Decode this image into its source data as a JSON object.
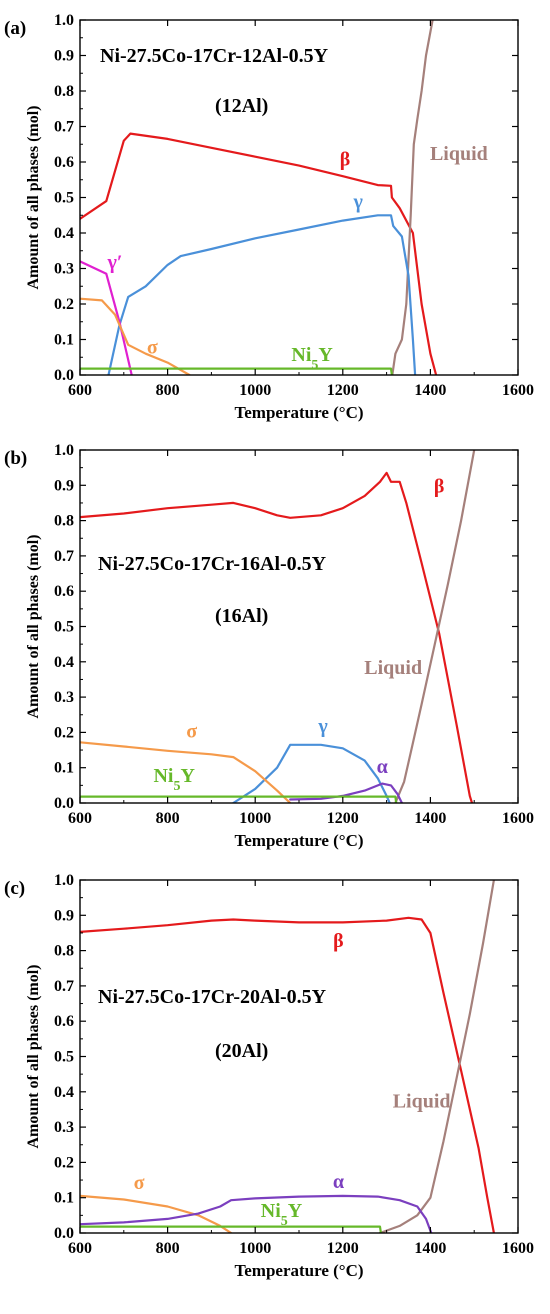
{
  "figure": {
    "shared_axes": {
      "xlabel": "Temperature (°C)",
      "ylabel": "Amount of all phases (mol)",
      "xlim": [
        600,
        1600
      ],
      "ylim": [
        0,
        1.0
      ],
      "xticks": [
        "600",
        "800",
        "1000",
        "1200",
        "1400",
        "1600"
      ],
      "yticks": [
        "0.0",
        "0.1",
        "0.2",
        "0.3",
        "0.4",
        "0.5",
        "0.6",
        "0.7",
        "0.8",
        "0.9",
        "1.0"
      ]
    },
    "colors": {
      "beta": "#e41a1c",
      "liquid": "#a5807b",
      "gamma": "#4a90d9",
      "gamma_prime": "#e020d0",
      "sigma": "#f59a4a",
      "ni5y": "#66b82a",
      "alpha": "#7b3fbf"
    }
  },
  "chart_data": [
    {
      "type": "line",
      "panel_label": "(a)",
      "title": "Ni-27.5Co-17Cr-12Al-0.5Y",
      "subtitle": "(12Al)",
      "xlim": [
        600,
        1600
      ],
      "ylim": [
        0,
        1.0
      ],
      "series": [
        {
          "name": "β",
          "color_key": "beta",
          "points": [
            [
              600,
              0.44
            ],
            [
              660,
              0.49
            ],
            [
              700,
              0.66
            ],
            [
              715,
              0.68
            ],
            [
              800,
              0.665
            ],
            [
              900,
              0.64
            ],
            [
              1000,
              0.615
            ],
            [
              1100,
              0.59
            ],
            [
              1200,
              0.56
            ],
            [
              1280,
              0.535
            ],
            [
              1310,
              0.533
            ],
            [
              1312,
              0.5
            ],
            [
              1330,
              0.47
            ],
            [
              1360,
              0.4
            ],
            [
              1380,
              0.2
            ],
            [
              1400,
              0.06
            ],
            [
              1413,
              0.0
            ]
          ]
        },
        {
          "name": "Liquid",
          "color_key": "liquid",
          "points": [
            [
              1313,
              0.0
            ],
            [
              1320,
              0.06
            ],
            [
              1335,
              0.1
            ],
            [
              1345,
              0.2
            ],
            [
              1355,
              0.45
            ],
            [
              1362,
              0.65
            ],
            [
              1370,
              0.72
            ],
            [
              1380,
              0.8
            ],
            [
              1390,
              0.9
            ],
            [
              1405,
              1.0
            ]
          ]
        },
        {
          "name": "γ",
          "color_key": "gamma",
          "points": [
            [
              665,
              0.0
            ],
            [
              690,
              0.14
            ],
            [
              710,
              0.22
            ],
            [
              750,
              0.25
            ],
            [
              800,
              0.31
            ],
            [
              830,
              0.335
            ],
            [
              900,
              0.355
            ],
            [
              1000,
              0.385
            ],
            [
              1100,
              0.41
            ],
            [
              1200,
              0.435
            ],
            [
              1280,
              0.45
            ],
            [
              1310,
              0.45
            ],
            [
              1315,
              0.42
            ],
            [
              1335,
              0.39
            ],
            [
              1350,
              0.28
            ],
            [
              1360,
              0.1
            ],
            [
              1365,
              0.0
            ]
          ]
        },
        {
          "name": "γ′",
          "color_key": "gamma_prime",
          "points": [
            [
              600,
              0.32
            ],
            [
              660,
              0.285
            ],
            [
              690,
              0.15
            ],
            [
              718,
              0.0
            ]
          ]
        },
        {
          "name": "σ",
          "color_key": "sigma",
          "points": [
            [
              600,
              0.215
            ],
            [
              650,
              0.21
            ],
            [
              680,
              0.17
            ],
            [
              710,
              0.085
            ],
            [
              750,
              0.06
            ],
            [
              800,
              0.035
            ],
            [
              850,
              0.0
            ]
          ]
        },
        {
          "name": "Ni₅Y",
          "color_key": "ni5y",
          "points": [
            [
              600,
              0.018
            ],
            [
              1310,
              0.018
            ],
            [
              1312,
              0.0
            ]
          ]
        }
      ],
      "labels": [
        {
          "text": "β",
          "color_key": "beta",
          "x": 1205,
          "y": 0.59
        },
        {
          "text": "Liquid",
          "color_key": "liquid",
          "x": 1465,
          "y": 0.605
        },
        {
          "text": "γ",
          "color_key": "gamma",
          "x": 1235,
          "y": 0.47
        },
        {
          "text": "γ′",
          "color_key": "gamma_prime",
          "x": 680,
          "y": 0.3
        },
        {
          "text": "σ",
          "color_key": "sigma",
          "x": 765,
          "y": 0.06
        },
        {
          "text": "Ni₅Y",
          "color_key": "ni5y",
          "x": 1130,
          "y": 0.04
        }
      ]
    },
    {
      "type": "line",
      "panel_label": "(b)",
      "title": "Ni-27.5Co-17Cr-16Al-0.5Y",
      "subtitle": "(16Al)",
      "xlim": [
        600,
        1600
      ],
      "ylim": [
        0,
        1.0
      ],
      "series": [
        {
          "name": "β",
          "color_key": "beta",
          "points": [
            [
              600,
              0.81
            ],
            [
              700,
              0.82
            ],
            [
              800,
              0.835
            ],
            [
              900,
              0.845
            ],
            [
              950,
              0.85
            ],
            [
              1000,
              0.835
            ],
            [
              1050,
              0.815
            ],
            [
              1080,
              0.808
            ],
            [
              1150,
              0.815
            ],
            [
              1200,
              0.835
            ],
            [
              1250,
              0.87
            ],
            [
              1285,
              0.91
            ],
            [
              1300,
              0.935
            ],
            [
              1310,
              0.91
            ],
            [
              1330,
              0.91
            ],
            [
              1345,
              0.85
            ],
            [
              1380,
              0.68
            ],
            [
              1420,
              0.48
            ],
            [
              1460,
              0.22
            ],
            [
              1490,
              0.02
            ],
            [
              1495,
              0.0
            ]
          ]
        },
        {
          "name": "Liquid",
          "color_key": "liquid",
          "points": [
            [
              1320,
              0.0
            ],
            [
              1330,
              0.03
            ],
            [
              1340,
              0.06
            ],
            [
              1360,
              0.17
            ],
            [
              1380,
              0.28
            ],
            [
              1410,
              0.45
            ],
            [
              1440,
              0.62
            ],
            [
              1470,
              0.8
            ],
            [
              1500,
              1.0
            ]
          ]
        },
        {
          "name": "γ",
          "color_key": "gamma",
          "points": [
            [
              950,
              0.0
            ],
            [
              1000,
              0.04
            ],
            [
              1050,
              0.1
            ],
            [
              1080,
              0.165
            ],
            [
              1150,
              0.165
            ],
            [
              1200,
              0.155
            ],
            [
              1250,
              0.12
            ],
            [
              1280,
              0.07
            ],
            [
              1300,
              0.02
            ],
            [
              1307,
              0.0
            ]
          ]
        },
        {
          "name": "σ",
          "color_key": "sigma",
          "points": [
            [
              600,
              0.172
            ],
            [
              700,
              0.16
            ],
            [
              800,
              0.148
            ],
            [
              900,
              0.138
            ],
            [
              950,
              0.13
            ],
            [
              1000,
              0.09
            ],
            [
              1050,
              0.035
            ],
            [
              1080,
              0.0
            ]
          ]
        },
        {
          "name": "α",
          "color_key": "alpha",
          "points": [
            [
              1080,
              0.01
            ],
            [
              1150,
              0.012
            ],
            [
              1200,
              0.02
            ],
            [
              1250,
              0.035
            ],
            [
              1290,
              0.055
            ],
            [
              1310,
              0.05
            ],
            [
              1325,
              0.025
            ],
            [
              1335,
              0.0
            ]
          ]
        },
        {
          "name": "Ni₅Y",
          "color_key": "ni5y",
          "points": [
            [
              600,
              0.018
            ],
            [
              1320,
              0.018
            ],
            [
              1322,
              0.0
            ]
          ]
        }
      ],
      "labels": [
        {
          "text": "β",
          "color_key": "beta",
          "x": 1420,
          "y": 0.88
        },
        {
          "text": "Liquid",
          "color_key": "liquid",
          "x": 1315,
          "y": 0.365
        },
        {
          "text": "γ",
          "color_key": "gamma",
          "x": 1155,
          "y": 0.2
        },
        {
          "text": "σ",
          "color_key": "sigma",
          "x": 855,
          "y": 0.185
        },
        {
          "text": "α",
          "color_key": "alpha",
          "x": 1290,
          "y": 0.085
        },
        {
          "text": "Ni₅Y",
          "color_key": "ni5y",
          "x": 815,
          "y": 0.06
        }
      ]
    },
    {
      "type": "line",
      "panel_label": "(c)",
      "title": "Ni-27.5Co-17Cr-20Al-0.5Y",
      "subtitle": "(20Al)",
      "xlim": [
        600,
        1600
      ],
      "ylim": [
        0,
        1.0
      ],
      "series": [
        {
          "name": "β",
          "color_key": "beta",
          "points": [
            [
              600,
              0.853
            ],
            [
              700,
              0.862
            ],
            [
              800,
              0.872
            ],
            [
              900,
              0.885
            ],
            [
              950,
              0.888
            ],
            [
              1000,
              0.885
            ],
            [
              1100,
              0.88
            ],
            [
              1200,
              0.88
            ],
            [
              1300,
              0.885
            ],
            [
              1350,
              0.893
            ],
            [
              1380,
              0.888
            ],
            [
              1400,
              0.85
            ],
            [
              1430,
              0.68
            ],
            [
              1470,
              0.46
            ],
            [
              1510,
              0.24
            ],
            [
              1530,
              0.1
            ],
            [
              1545,
              0.0
            ]
          ]
        },
        {
          "name": "Liquid",
          "color_key": "liquid",
          "points": [
            [
              1285,
              0.0
            ],
            [
              1330,
              0.02
            ],
            [
              1370,
              0.05
            ],
            [
              1400,
              0.1
            ],
            [
              1430,
              0.26
            ],
            [
              1460,
              0.44
            ],
            [
              1490,
              0.62
            ],
            [
              1520,
              0.82
            ],
            [
              1545,
              1.0
            ]
          ]
        },
        {
          "name": "σ",
          "color_key": "sigma",
          "points": [
            [
              600,
              0.105
            ],
            [
              700,
              0.095
            ],
            [
              800,
              0.075
            ],
            [
              870,
              0.05
            ],
            [
              920,
              0.02
            ],
            [
              945,
              0.0
            ]
          ]
        },
        {
          "name": "α",
          "color_key": "alpha",
          "points": [
            [
              600,
              0.025
            ],
            [
              700,
              0.03
            ],
            [
              800,
              0.04
            ],
            [
              870,
              0.055
            ],
            [
              920,
              0.075
            ],
            [
              945,
              0.093
            ],
            [
              1000,
              0.098
            ],
            [
              1100,
              0.103
            ],
            [
              1200,
              0.105
            ],
            [
              1280,
              0.103
            ],
            [
              1330,
              0.093
            ],
            [
              1370,
              0.075
            ],
            [
              1390,
              0.04
            ],
            [
              1402,
              0.0
            ]
          ]
        },
        {
          "name": "Ni₅Y",
          "color_key": "ni5y",
          "points": [
            [
              600,
              0.018
            ],
            [
              1285,
              0.018
            ],
            [
              1287,
              0.0
            ]
          ]
        }
      ],
      "labels": [
        {
          "text": "β",
          "color_key": "beta",
          "x": 1190,
          "y": 0.81
        },
        {
          "text": "Liquid",
          "color_key": "liquid",
          "x": 1380,
          "y": 0.355
        },
        {
          "text": "σ",
          "color_key": "sigma",
          "x": 735,
          "y": 0.125
        },
        {
          "text": "α",
          "color_key": "alpha",
          "x": 1190,
          "y": 0.128
        },
        {
          "text": "Ni₅Y",
          "color_key": "ni5y",
          "x": 1060,
          "y": 0.045
        }
      ]
    }
  ]
}
